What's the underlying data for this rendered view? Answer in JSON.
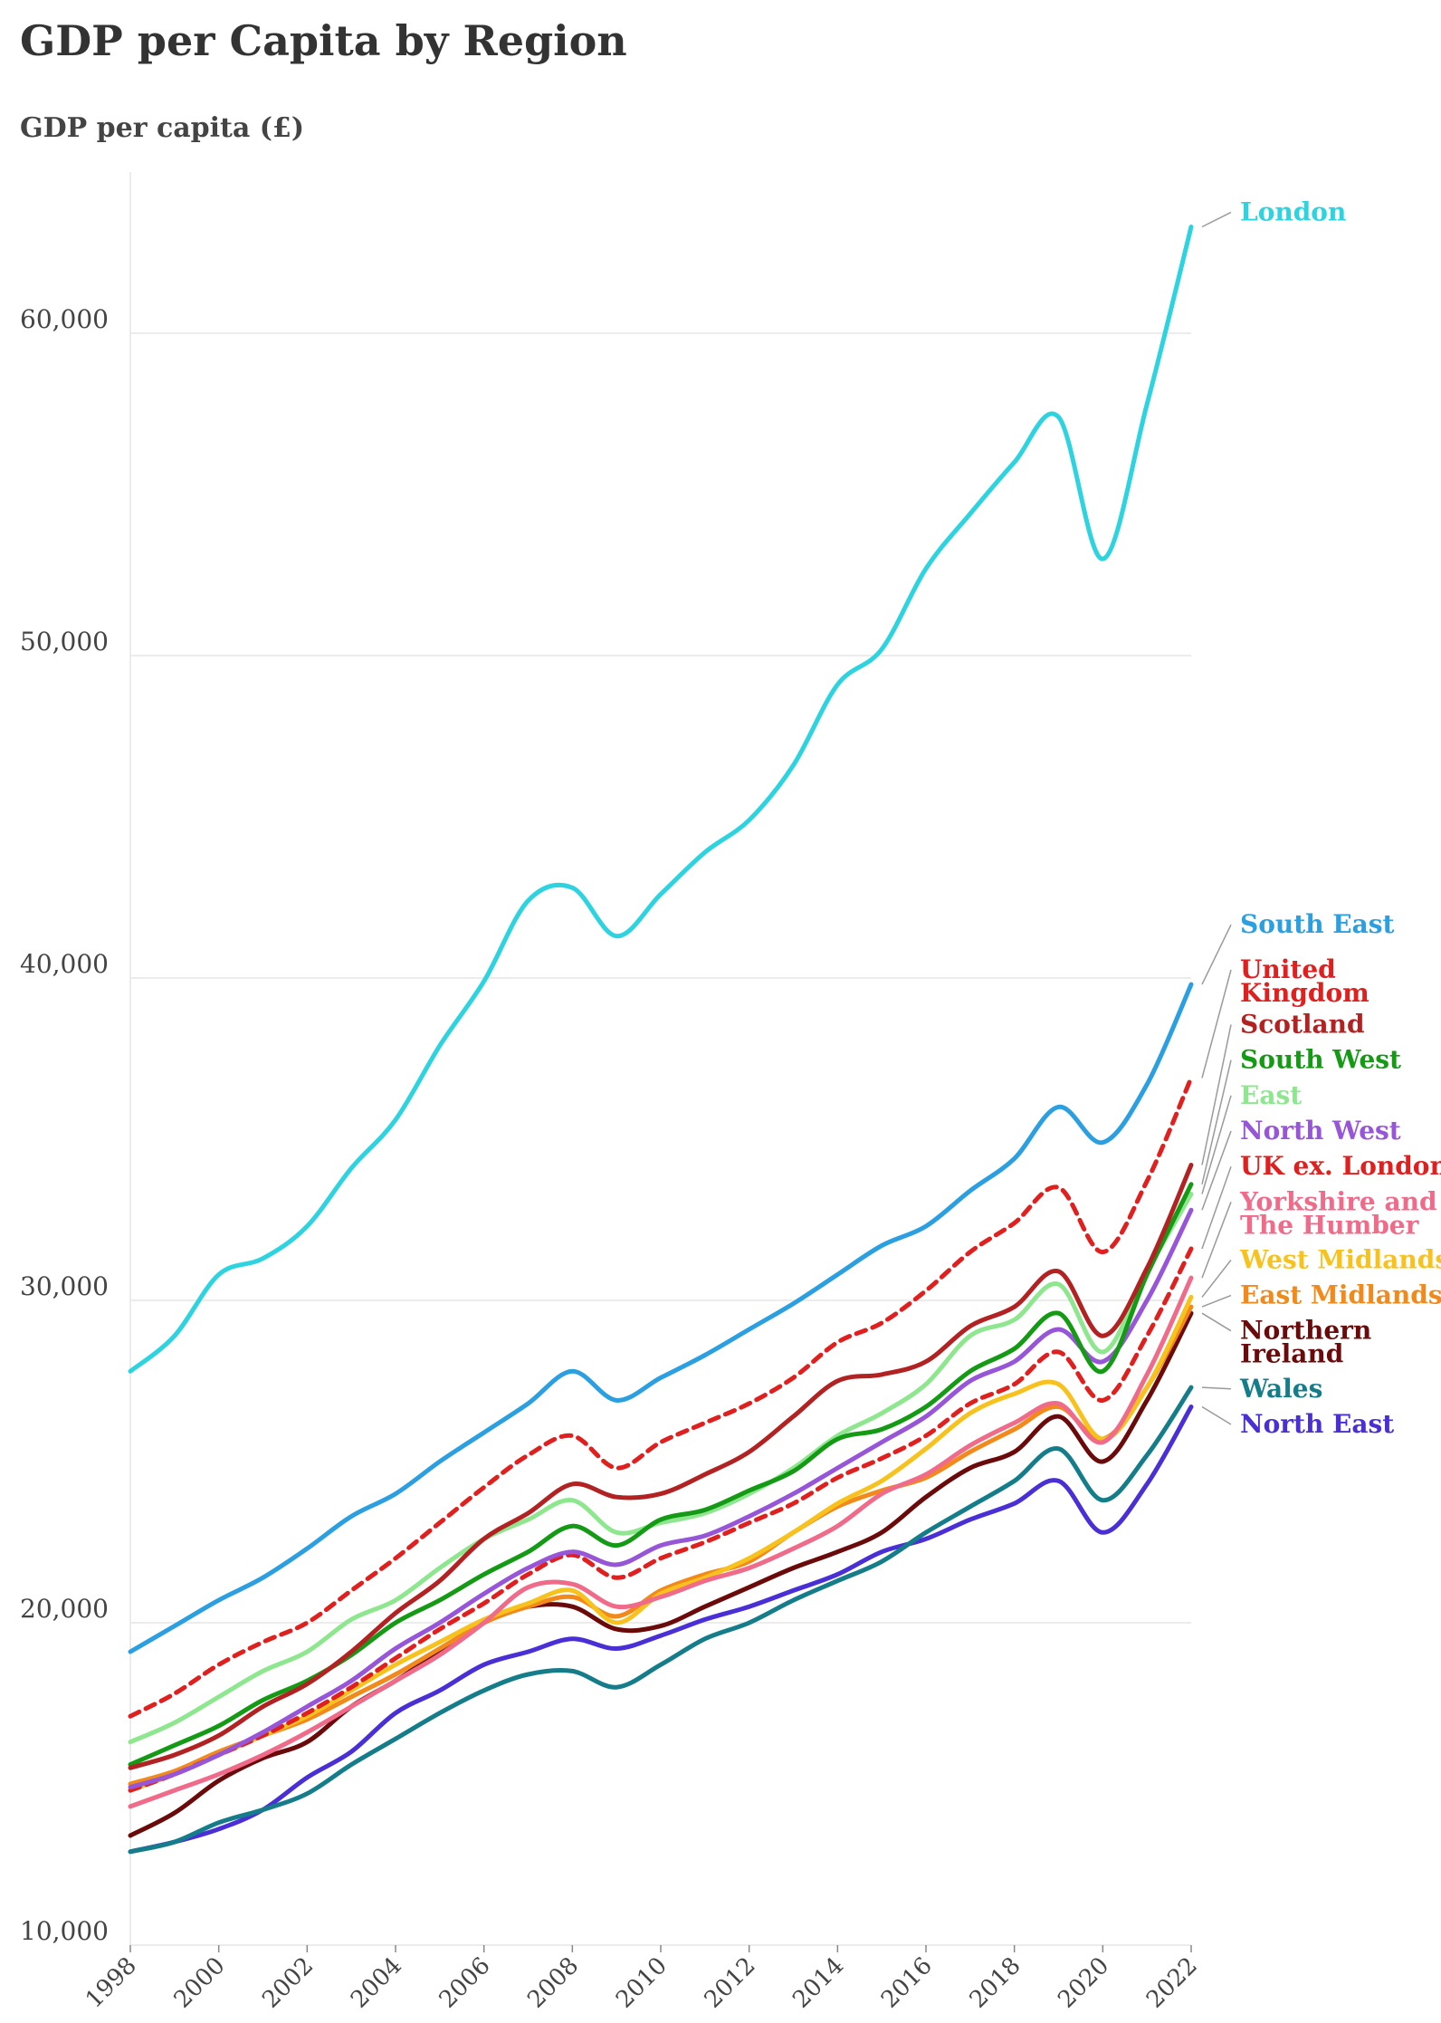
{
  "chart_data": {
    "type": "line",
    "title": "GDP per Capita by Region",
    "ylabel": "GDP per capita (£)",
    "xlabel": "",
    "ylim": [
      10000,
      65000
    ],
    "yticks": [
      10000,
      20000,
      30000,
      40000,
      50000,
      60000
    ],
    "ytick_labels": [
      "10,000",
      "20,000",
      "30,000",
      "40,000",
      "50,000",
      "60,000"
    ],
    "xticks": [
      1998,
      2000,
      2002,
      2004,
      2006,
      2008,
      2010,
      2012,
      2014,
      2016,
      2018,
      2020,
      2022
    ],
    "xtick_labels": [
      "1998",
      "2000",
      "2002",
      "2004",
      "2006",
      "2008",
      "2010",
      "2012",
      "2014",
      "2016",
      "2018",
      "2020",
      "2022"
    ],
    "grid": "horizontal",
    "legend": "direct labels at right",
    "x": [
      1998,
      1999,
      2000,
      2001,
      2002,
      2003,
      2004,
      2005,
      2006,
      2007,
      2008,
      2009,
      2010,
      2011,
      2012,
      2013,
      2014,
      2015,
      2016,
      2017,
      2018,
      2019,
      2020,
      2021,
      2022
    ],
    "series": [
      {
        "name": "London",
        "label": [
          "London"
        ],
        "color": "#2ed3e0",
        "dash": false,
        "label_y": 63500,
        "values": [
          27800,
          28900,
          30800,
          31300,
          32300,
          34100,
          35600,
          37900,
          39900,
          42400,
          42800,
          41300,
          42600,
          43900,
          44900,
          46600,
          49100,
          50200,
          52700,
          54400,
          56000,
          57400,
          53000,
          57800,
          63300
        ]
      },
      {
        "name": "South East",
        "label": [
          "South East"
        ],
        "color": "#2b9fe0",
        "dash": false,
        "label_y": 41400,
        "values": [
          19100,
          19900,
          20700,
          21400,
          22300,
          23300,
          24000,
          25000,
          25900,
          26800,
          27800,
          26900,
          27600,
          28300,
          29100,
          29900,
          30800,
          31700,
          32300,
          33400,
          34400,
          36000,
          34900,
          36700,
          39800
        ]
      },
      {
        "name": "United Kingdom",
        "label": [
          "United",
          "Kingdom"
        ],
        "color": "#e01f1f",
        "dash": true,
        "label_y": 40000,
        "values": [
          17100,
          17800,
          18700,
          19400,
          20000,
          21000,
          22000,
          23100,
          24200,
          25200,
          25800,
          24800,
          25600,
          26200,
          26800,
          27600,
          28700,
          29300,
          30300,
          31500,
          32400,
          33500,
          31500,
          33700,
          36900
        ]
      },
      {
        "name": "Scotland",
        "label": [
          "Scotland"
        ],
        "color": "#b22222",
        "dash": false,
        "label_y": 38300,
        "values": [
          15500,
          15900,
          16500,
          17400,
          18100,
          19100,
          20300,
          21300,
          22600,
          23400,
          24300,
          23900,
          24000,
          24600,
          25300,
          26400,
          27500,
          27700,
          28100,
          29200,
          29800,
          30900,
          28900,
          31000,
          34200
        ]
      },
      {
        "name": "South West",
        "label": [
          "South West"
        ],
        "color": "#159a15",
        "dash": false,
        "label_y": 37200,
        "values": [
          15600,
          16200,
          16800,
          17600,
          18200,
          19000,
          20000,
          20700,
          21500,
          22200,
          23000,
          22400,
          23200,
          23500,
          24100,
          24700,
          25700,
          26000,
          26700,
          27800,
          28500,
          29600,
          27800,
          30800,
          33600
        ]
      },
      {
        "name": "East",
        "label": [
          "East"
        ],
        "color": "#8ee68e",
        "dash": false,
        "label_y": 36100,
        "values": [
          16300,
          16900,
          17700,
          18500,
          19100,
          20100,
          20700,
          21700,
          22600,
          23200,
          23800,
          22800,
          23100,
          23400,
          24000,
          24800,
          25800,
          26500,
          27400,
          28900,
          29400,
          30500,
          28400,
          30900,
          33300
        ]
      },
      {
        "name": "North West",
        "label": [
          "North West"
        ],
        "color": "#9755d8",
        "dash": false,
        "label_y": 35000,
        "values": [
          14900,
          15300,
          15900,
          16600,
          17400,
          18200,
          19200,
          20000,
          20900,
          21700,
          22200,
          21800,
          22400,
          22700,
          23300,
          24000,
          24800,
          25600,
          26400,
          27500,
          28100,
          29100,
          28100,
          30000,
          32800
        ]
      },
      {
        "name": "UK ex. London",
        "label": [
          "UK ex. London"
        ],
        "color": "#e01f1f",
        "dash": true,
        "label_y": 33900,
        "values": [
          14800,
          15300,
          15900,
          16500,
          17200,
          18000,
          18900,
          19800,
          20600,
          21500,
          22100,
          21400,
          22000,
          22500,
          23100,
          23700,
          24500,
          25100,
          25800,
          26800,
          27400,
          28400,
          26900,
          28900,
          31600
        ]
      },
      {
        "name": "Yorkshire and The Humber",
        "label": [
          "Yorkshire and",
          "The Humber"
        ],
        "color": "#f06a8a",
        "dash": false,
        "label_y": 32800,
        "values": [
          14300,
          14800,
          15300,
          15900,
          16600,
          17400,
          18200,
          19000,
          20000,
          21100,
          21200,
          20500,
          20800,
          21300,
          21700,
          22300,
          23000,
          24000,
          24600,
          25500,
          26200,
          26800,
          25600,
          27700,
          30700
        ]
      },
      {
        "name": "West Midlands",
        "label": [
          "West Midlands"
        ],
        "color": "#f7c21d",
        "dash": false,
        "label_y": 31000,
        "values": [
          14800,
          15300,
          15900,
          16500,
          17100,
          17900,
          18700,
          19400,
          20100,
          20600,
          21000,
          20000,
          20900,
          21400,
          22000,
          22800,
          23700,
          24400,
          25400,
          26500,
          27100,
          27400,
          25700,
          27300,
          30100
        ]
      },
      {
        "name": "East Midlands",
        "label": [
          "East Midlands"
        ],
        "color": "#f28a1b",
        "dash": false,
        "label_y": 29900,
        "values": [
          15000,
          15400,
          16000,
          16500,
          17000,
          17700,
          18400,
          19200,
          20000,
          20500,
          20800,
          20200,
          21000,
          21500,
          21900,
          22800,
          23600,
          24100,
          24500,
          25300,
          26000,
          26700,
          25700,
          27300,
          29800
        ]
      },
      {
        "name": "Northern Ireland",
        "label": [
          "Northern",
          "Ireland"
        ],
        "color": "#6b0a0a",
        "dash": false,
        "label_y": 28800,
        "values": [
          13400,
          14100,
          15100,
          15800,
          16300,
          17400,
          18200,
          19100,
          20000,
          20500,
          20500,
          19800,
          19900,
          20500,
          21100,
          21700,
          22200,
          22800,
          23900,
          24800,
          25300,
          26400,
          25000,
          26900,
          29600
        ]
      },
      {
        "name": "Wales",
        "label": [
          "Wales"
        ],
        "color": "#157d8a",
        "dash": false,
        "label_y": 27000,
        "values": [
          12900,
          13200,
          13800,
          14200,
          14700,
          15600,
          16400,
          17200,
          17900,
          18400,
          18500,
          18000,
          18700,
          19500,
          20000,
          20700,
          21300,
          21900,
          22800,
          23600,
          24400,
          25400,
          23800,
          25200,
          27300
        ]
      },
      {
        "name": "North East",
        "label": [
          "North East"
        ],
        "color": "#4a2fd6",
        "dash": false,
        "label_y": 25900,
        "values": [
          12900,
          13200,
          13600,
          14200,
          15200,
          16000,
          17200,
          17900,
          18700,
          19100,
          19500,
          19200,
          19600,
          20100,
          20500,
          21000,
          21500,
          22200,
          22600,
          23200,
          23700,
          24400,
          22800,
          24300,
          26700
        ]
      }
    ]
  }
}
